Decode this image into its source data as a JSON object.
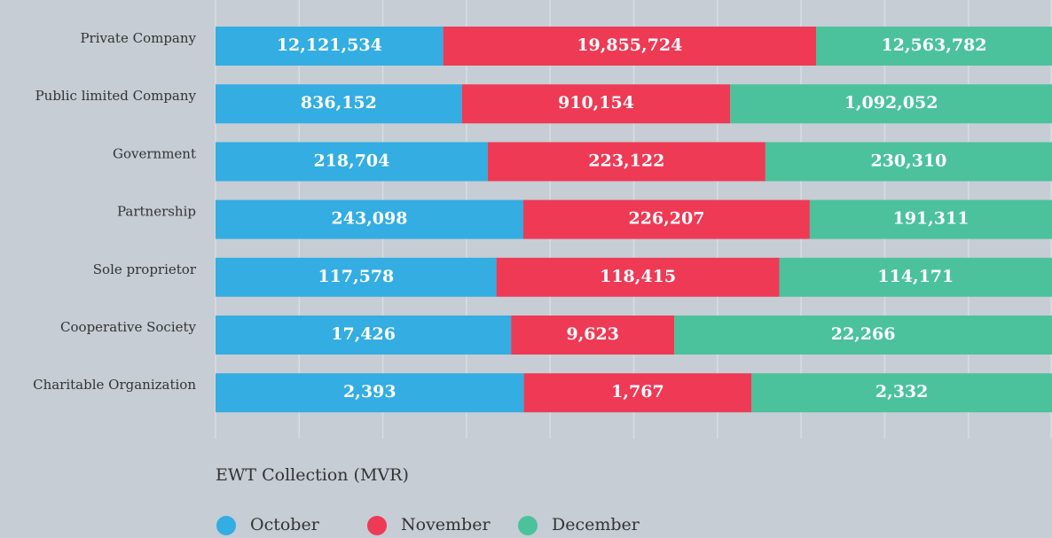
{
  "chart_data": {
    "type": "stacked-bar-100",
    "orientation": "horizontal",
    "x_label": "EWT Collection (MVR)",
    "categories": [
      "Private Company",
      "Public limited Company",
      "Government",
      "Partnership",
      "Sole proprietor",
      "Cooperative Society",
      "Charitable Organization"
    ],
    "series": [
      {
        "name": "October",
        "color": "#33ade2",
        "values": [
          12121534,
          836152,
          218704,
          243098,
          117578,
          17426,
          2393
        ],
        "value_labels": [
          "12,121,534",
          "836,152",
          "218,704",
          "243,098",
          "117,578",
          "17,426",
          "2,393"
        ]
      },
      {
        "name": "November",
        "color": "#ee3a55",
        "values": [
          19855724,
          910154,
          223122,
          226207,
          118415,
          9623,
          1767
        ],
        "value_labels": [
          "19,855,724",
          "910,154",
          "223,122",
          "226,207",
          "118,415",
          "9,623",
          "1,767"
        ]
      },
      {
        "name": "December",
        "color": "#4bc29b",
        "values": [
          12563782,
          1092052,
          230310,
          191311,
          114171,
          22266,
          2332
        ],
        "value_labels": [
          "12,563,782",
          "1,092,052",
          "230,310",
          "191,311",
          "114,171",
          "22,266",
          "2,332"
        ]
      }
    ],
    "xlim": [
      0,
      100
    ],
    "xticks": [
      0,
      10,
      20,
      30,
      40,
      50,
      60,
      70,
      80,
      90,
      100
    ],
    "grid": true,
    "legend": "bottom-left"
  }
}
